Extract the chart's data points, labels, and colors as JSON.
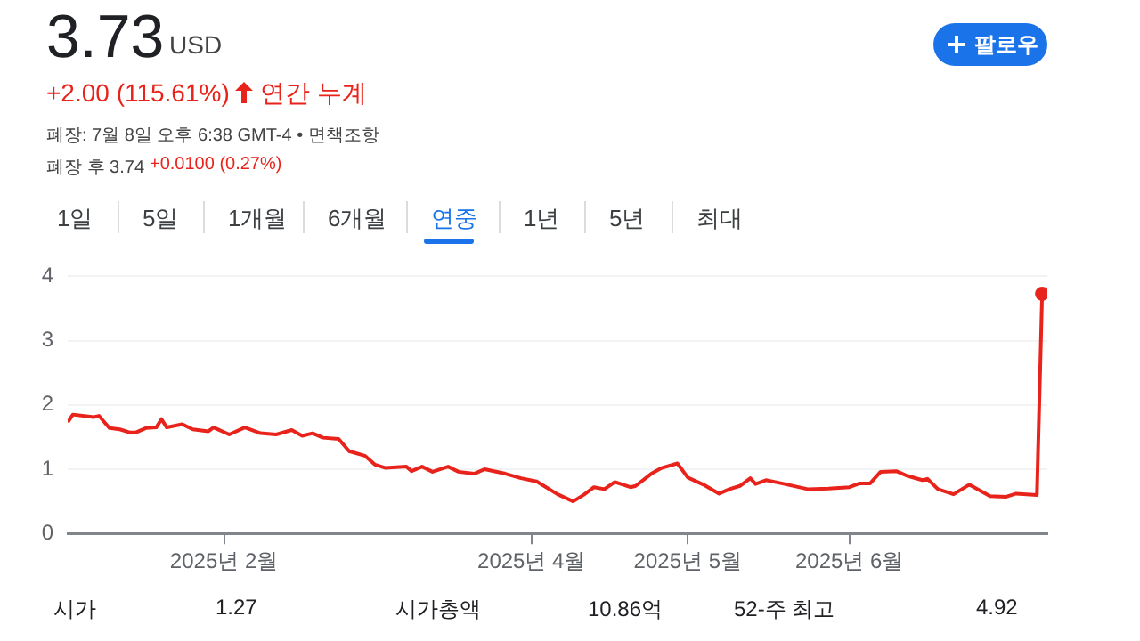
{
  "chart_data": {
    "type": "line",
    "title": "3.73",
    "subtitle": "USD",
    "annotations": [
      "+2.00 (115.61%)",
      "연간 누계",
      "폐장: 7월 8일 오후 6:38 GMT-4 • 면책조항",
      "폐장 후 3.74",
      "+0.0100 (0.27%)",
      "팔로우",
      "1일",
      "5일",
      "1개월",
      "6개월",
      "연중",
      "1년",
      "5년",
      "최대",
      "시가",
      "1.27",
      "시가총액",
      "10.86억",
      "52-주 최고",
      "4.92"
    ],
    "x": [
      "2025-01-02",
      "2025-01-03",
      "2025-01-07",
      "2025-01-08",
      "2025-01-10",
      "2025-01-12",
      "2025-01-14",
      "2025-01-15",
      "2025-01-17",
      "2025-01-19",
      "2025-01-20",
      "2025-01-21",
      "2025-01-24",
      "2025-01-26",
      "2025-01-29",
      "2025-01-30",
      "2025-02-02",
      "2025-02-05",
      "2025-02-08",
      "2025-02-11",
      "2025-02-14",
      "2025-02-16",
      "2025-02-18",
      "2025-02-20",
      "2025-02-23",
      "2025-02-25",
      "2025-02-28",
      "2025-03-02",
      "2025-03-04",
      "2025-03-08",
      "2025-03-09",
      "2025-03-11",
      "2025-03-13",
      "2025-03-16",
      "2025-03-18",
      "2025-03-21",
      "2025-03-23",
      "2025-03-27",
      "2025-03-30",
      "2025-04-02",
      "2025-04-06",
      "2025-04-09",
      "2025-04-11",
      "2025-04-13",
      "2025-04-15",
      "2025-04-17",
      "2025-04-20",
      "2025-04-21",
      "2025-04-24",
      "2025-04-26",
      "2025-04-29",
      "2025-05-01",
      "2025-05-04",
      "2025-05-07",
      "2025-05-09",
      "2025-05-11",
      "2025-05-13",
      "2025-05-14",
      "2025-05-16",
      "2025-05-19",
      "2025-05-24",
      "2025-05-28",
      "2025-06-01",
      "2025-06-03",
      "2025-06-05",
      "2025-06-07",
      "2025-06-10",
      "2025-06-12",
      "2025-06-15",
      "2025-06-16",
      "2025-06-18",
      "2025-06-21",
      "2025-06-24",
      "2025-06-26",
      "2025-06-28",
      "2025-07-01",
      "2025-07-03",
      "2025-07-07",
      "2025-07-08"
    ],
    "series": [
      {
        "color": "#e8231b",
        "values": [
          1.73,
          1.85,
          1.81,
          1.83,
          1.64,
          1.62,
          1.57,
          1.57,
          1.64,
          1.65,
          1.78,
          1.65,
          1.7,
          1.62,
          1.59,
          1.65,
          1.54,
          1.65,
          1.56,
          1.54,
          1.61,
          1.52,
          1.56,
          1.49,
          1.47,
          1.28,
          1.21,
          1.07,
          1.02,
          1.04,
          0.97,
          1.04,
          0.96,
          1.04,
          0.96,
          0.93,
          1.0,
          0.93,
          0.86,
          0.81,
          0.61,
          0.5,
          0.6,
          0.72,
          0.69,
          0.8,
          0.72,
          0.74,
          0.93,
          1.02,
          1.09,
          0.87,
          0.76,
          0.62,
          0.69,
          0.74,
          0.86,
          0.77,
          0.83,
          0.78,
          0.69,
          0.7,
          0.72,
          0.78,
          0.78,
          0.96,
          0.97,
          0.9,
          0.83,
          0.85,
          0.69,
          0.61,
          0.76,
          0.67,
          0.58,
          0.57,
          0.62,
          0.6,
          3.73
        ]
      }
    ],
    "xlim": [
      "2025-01-02",
      "2025-07-09"
    ],
    "xticks": [
      {
        "value": "2025-02-01",
        "label": "2025년 2월"
      },
      {
        "value": "2025-04-01",
        "label": "2025년 4월"
      },
      {
        "value": "2025-05-01",
        "label": "2025년 5월"
      },
      {
        "value": "2025-06-01",
        "label": "2025년 6월"
      }
    ],
    "ylim": [
      0,
      4
    ],
    "yticks": [
      0,
      1,
      2,
      3,
      4
    ],
    "grid": "y",
    "marker": "none",
    "line_style": "solid",
    "legend": false
  }
}
